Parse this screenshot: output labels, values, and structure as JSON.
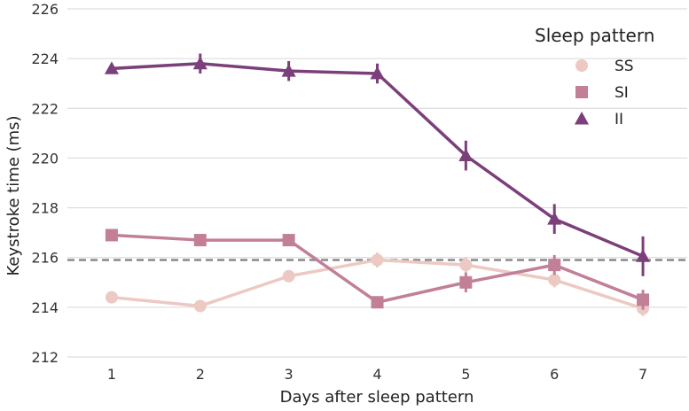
{
  "chart_data": {
    "type": "line",
    "title": "",
    "xlabel": "Days after sleep pattern",
    "ylabel": "Keystroke time (ms)",
    "x": [
      1,
      2,
      3,
      4,
      5,
      6,
      7
    ],
    "xlim": [
      0.5,
      7.5
    ],
    "ylim": [
      212,
      226
    ],
    "y_ticks": [
      212,
      214,
      216,
      218,
      220,
      222,
      224,
      226
    ],
    "grid": "horizontal",
    "legend": {
      "title": "Sleep pattern",
      "placement": "top-right"
    },
    "reference_line": {
      "y": 215.9,
      "style": "dashed",
      "color": "#888888"
    },
    "series": [
      {
        "name": "SS",
        "marker": "circle",
        "color": "#ecc9c3",
        "values": [
          214.4,
          214.05,
          215.25,
          215.9,
          215.7,
          215.1,
          213.95
        ],
        "errors": [
          0.2,
          0.2,
          0.2,
          0.3,
          0.3,
          0.3,
          0.3
        ]
      },
      {
        "name": "SI",
        "marker": "square",
        "color": "#c17f98",
        "values": [
          216.9,
          216.7,
          216.7,
          214.2,
          215.0,
          215.7,
          214.3
        ],
        "errors": [
          0.2,
          0.2,
          0.2,
          0.2,
          0.4,
          0.4,
          0.4
        ]
      },
      {
        "name": "II",
        "marker": "triangle",
        "color": "#7b3f7a",
        "values": [
          223.6,
          223.8,
          223.5,
          223.4,
          220.1,
          217.55,
          216.05
        ],
        "errors": [
          0.2,
          0.4,
          0.4,
          0.4,
          0.6,
          0.6,
          0.8
        ]
      }
    ]
  }
}
